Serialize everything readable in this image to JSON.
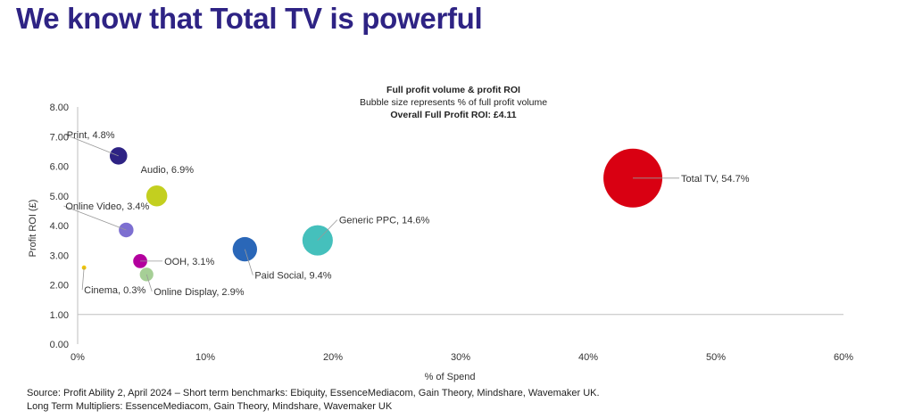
{
  "page": {
    "title": "We know that Total TV is powerful",
    "source_line1": "Source: Profit Ability 2, April 2024 – Short term benchmarks: Ebiquity, EssenceMediacom, Gain Theory, Mindshare, Wavemaker UK.",
    "source_line2": "Long Term Multipliers: EssenceMediacom, Gain Theory, Mindshare, Wavemaker UK"
  },
  "chart_data": {
    "type": "scatter",
    "title": "Full profit volume & profit ROI",
    "subtitle": "Bubble size represents % of full profit volume",
    "annotation": "Overall Full Profit ROI: £4.11",
    "xlabel": "% of Spend",
    "ylabel": "Profit ROI (£)",
    "xlim": [
      0,
      60
    ],
    "ylim": [
      0,
      8
    ],
    "x_ticks": [
      "0%",
      "10%",
      "20%",
      "30%",
      "40%",
      "50%",
      "60%"
    ],
    "y_ticks": [
      "0.00",
      "1.00",
      "2.00",
      "3.00",
      "4.00",
      "5.00",
      "6.00",
      "7.00",
      "8.00"
    ],
    "grid": false,
    "points": [
      {
        "label": "Print, 4.8%",
        "x": 3.2,
        "y": 6.35,
        "size": 4.8,
        "color": "#2e2384"
      },
      {
        "label": "Audio, 6.9%",
        "x": 6.2,
        "y": 5.0,
        "size": 6.9,
        "color": "#c3cf1f"
      },
      {
        "label": "Online Video, 3.4%",
        "x": 3.8,
        "y": 3.85,
        "size": 3.4,
        "color": "#7d6fd1"
      },
      {
        "label": "OOH, 3.1%",
        "x": 4.9,
        "y": 2.8,
        "size": 3.1,
        "color": "#b3009e"
      },
      {
        "label": "Online Display, 2.9%",
        "x": 5.4,
        "y": 2.35,
        "size": 2.9,
        "color": "#a6cf96"
      },
      {
        "label": "Cinema, 0.3%",
        "x": 0.5,
        "y": 2.58,
        "size": 0.3,
        "color": "#f0c400"
      },
      {
        "label": "Paid Social, 9.4%",
        "x": 13.1,
        "y": 3.2,
        "size": 9.4,
        "color": "#2a67b8"
      },
      {
        "label": "Generic PPC, 14.6%",
        "x": 18.8,
        "y": 3.5,
        "size": 14.6,
        "color": "#45c0bc"
      },
      {
        "label": "Total TV, 54.7%",
        "x": 43.5,
        "y": 5.6,
        "size": 54.7,
        "color": "#d90012"
      }
    ]
  }
}
